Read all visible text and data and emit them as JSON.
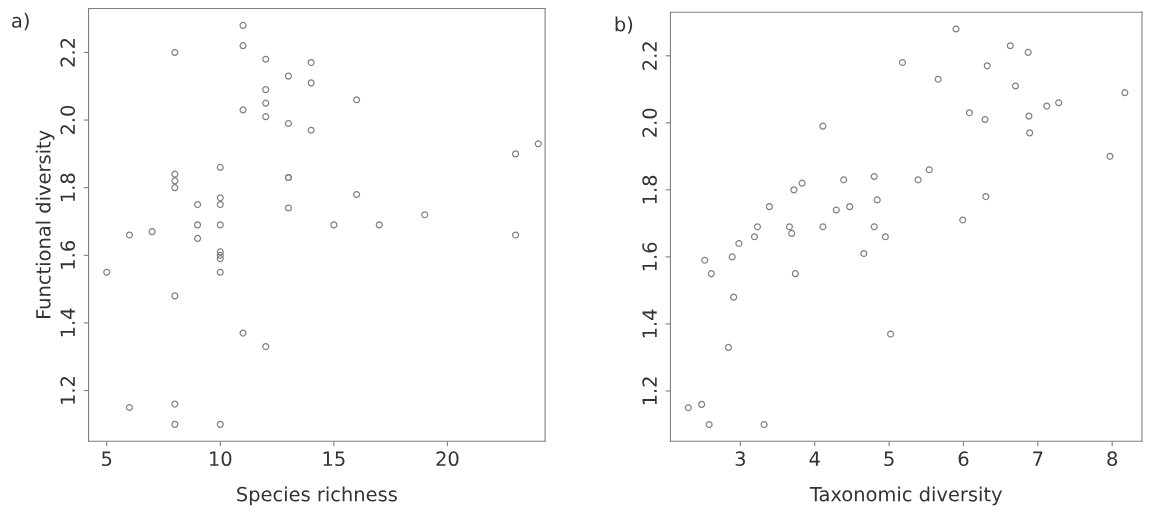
{
  "chart_data": [
    {
      "type": "scatter",
      "xlabel": "Species richness",
      "ylabel": "Functional diversity",
      "annotations": [
        "a)"
      ],
      "marker": "circle",
      "grid": false,
      "xlim": [
        4.2,
        24.3
      ],
      "ylim": [
        1.05,
        2.33
      ],
      "xticks": [
        5,
        10,
        15,
        20
      ],
      "yticks": [
        1.2,
        1.4,
        1.6,
        1.8,
        {
          "value": 2,
          "label": "2.0"
        },
        2.2
      ],
      "series": [
        {
          "color": "#808080",
          "x": [
            5,
            6,
            6,
            7,
            8,
            8,
            8,
            8,
            8,
            8,
            8,
            9,
            9,
            9,
            10,
            10,
            10,
            10,
            10,
            10,
            10,
            10,
            10,
            11,
            11,
            11,
            11,
            12,
            12,
            12,
            12,
            12,
            13,
            13,
            13,
            13,
            13,
            14,
            14,
            14,
            15,
            16,
            16,
            17,
            19,
            23,
            23,
            24
          ],
          "values": [
            1.55,
            1.66,
            1.15,
            1.67,
            2.2,
            1.84,
            1.82,
            1.8,
            1.48,
            1.16,
            1.1,
            1.75,
            1.69,
            1.65,
            1.86,
            1.77,
            1.75,
            1.69,
            1.61,
            1.6,
            1.59,
            1.55,
            1.1,
            2.28,
            2.22,
            2.03,
            1.37,
            2.18,
            2.09,
            2.05,
            2.01,
            1.33,
            2.13,
            1.99,
            1.83,
            1.83,
            1.74,
            2.17,
            2.11,
            1.97,
            1.69,
            2.06,
            1.78,
            1.69,
            1.72,
            1.9,
            1.66,
            1.93
          ]
        }
      ]
    },
    {
      "type": "scatter",
      "xlabel": "Taxonomic diversity",
      "annotations": [
        "b)"
      ],
      "marker": "circle",
      "grid": false,
      "xlim": [
        2.06,
        8.4
      ],
      "ylim": [
        1.05,
        2.33
      ],
      "xticks": [
        3,
        4,
        5,
        6,
        7,
        8
      ],
      "yticks": [
        1.2,
        1.4,
        1.6,
        1.8,
        {
          "value": 2,
          "label": "2.0"
        },
        2.2
      ],
      "series": [
        {
          "color": "#808080",
          "x": [
            2.3,
            2.48,
            2.58,
            2.52,
            2.61,
            2.84,
            2.89,
            2.91,
            2.98,
            3.19,
            3.23,
            3.32,
            3.39,
            3.66,
            3.69,
            3.72,
            3.74,
            3.83,
            4.11,
            4.11,
            4.29,
            4.39,
            4.47,
            4.66,
            4.8,
            4.84,
            4.8,
            4.95,
            5.02,
            5.18,
            5.39,
            5.54,
            5.66,
            5.9,
            5.99,
            6.08,
            6.29,
            6.3,
            6.32,
            6.63,
            6.7,
            6.87,
            6.88,
            6.89,
            7.12,
            7.28,
            7.97,
            8.17
          ],
          "values": [
            1.15,
            1.16,
            1.1,
            1.59,
            1.55,
            1.33,
            1.6,
            1.48,
            1.64,
            1.66,
            1.69,
            1.1,
            1.75,
            1.69,
            1.67,
            1.8,
            1.55,
            1.82,
            1.99,
            1.69,
            1.74,
            1.83,
            1.75,
            1.61,
            1.84,
            1.77,
            1.69,
            1.66,
            1.37,
            2.18,
            1.83,
            1.86,
            2.13,
            2.28,
            1.71,
            2.03,
            2.01,
            1.78,
            2.17,
            2.23,
            2.11,
            2.21,
            2.02,
            1.97,
            2.05,
            2.06,
            1.9,
            2.09
          ]
        }
      ]
    }
  ]
}
